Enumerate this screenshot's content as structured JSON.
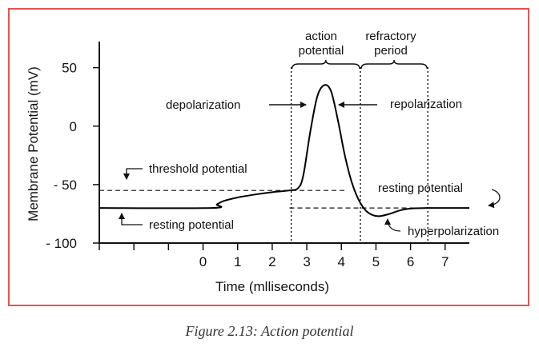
{
  "caption": "Figure 2.13: Action potential",
  "chart_data": {
    "type": "line",
    "title": "",
    "xlabel": "Time (mlliseconds)",
    "ylabel": "Membrane Potential (mV)",
    "xlim": [
      -3,
      7.7
    ],
    "ylim": [
      -100,
      60
    ],
    "x_ticks": [
      -3,
      -2,
      -1,
      0,
      1,
      2,
      3,
      4,
      5,
      6,
      7
    ],
    "x_tick_labels": [
      "",
      "",
      "",
      "0",
      "1",
      "2",
      "3",
      "4",
      "5",
      "6",
      "7"
    ],
    "y_ticks": [
      50,
      0,
      -50,
      -100
    ],
    "y_tick_labels": [
      "50",
      "0",
      "- 50",
      "- 100"
    ],
    "series": [
      {
        "color": "#000000",
        "x": [
          -3,
          0.25,
          0.4,
          0.6,
          1.0,
          1.5,
          2.0,
          2.5,
          2.75,
          2.9,
          3.1,
          3.3,
          3.5,
          3.7,
          3.9,
          4.1,
          4.3,
          4.5,
          4.7,
          4.9,
          5.1,
          5.4,
          5.7,
          6.0,
          6.5,
          7.0,
          7.7
        ],
        "y": [
          -70,
          -70,
          -67,
          -64,
          -61,
          -58.5,
          -56.5,
          -55,
          -53,
          -42,
          -5,
          25,
          35,
          30,
          5,
          -25,
          -48,
          -63,
          -72,
          -76,
          -77,
          -75,
          -72,
          -70.5,
          -70,
          -70,
          -70
        ]
      }
    ],
    "reference_lines": [
      {
        "name": "threshold potential",
        "y": -55,
        "x_range": [
          -3,
          4.1
        ],
        "style": "dashed"
      },
      {
        "name": "resting potential",
        "y": -70,
        "x_range": [
          2.5,
          7.7
        ],
        "style": "dashed"
      }
    ],
    "vertical_lines": [
      2.55,
      4.55,
      6.5
    ],
    "brackets": [
      {
        "x_range": [
          2.55,
          4.55
        ],
        "text": [
          "action",
          "potential"
        ]
      },
      {
        "x_range": [
          4.55,
          6.5
        ],
        "text": [
          "refractory",
          "period"
        ]
      }
    ],
    "annotations": {
      "depolarization": "depolarization",
      "repolarization": "repolarization",
      "threshold": "threshold potential",
      "resting_left": "resting potential",
      "resting_right": "resting potential",
      "hyperpolarization": "hyperpolarization"
    }
  }
}
